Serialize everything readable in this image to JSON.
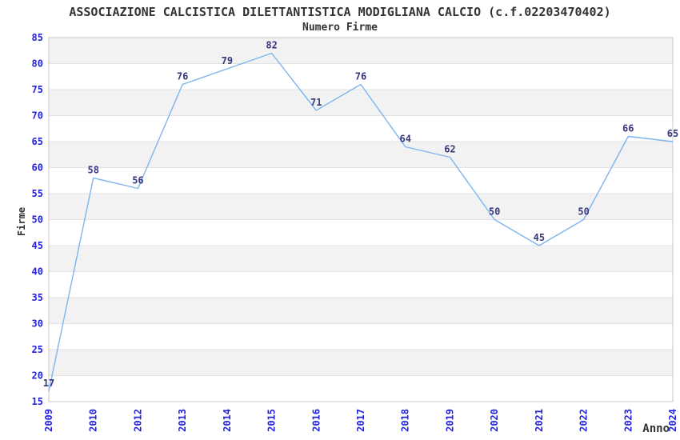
{
  "chart_data": {
    "type": "line",
    "title": "ASSOCIAZIONE CALCISTICA DILETTANTISTICA MODIGLIANA CALCIO (c.f.02203470402)",
    "subtitle": "Numero Firme",
    "xlabel": "Anno",
    "ylabel": "Firme",
    "categories": [
      "2009",
      "2010",
      "2012",
      "2013",
      "2014",
      "2015",
      "2016",
      "2017",
      "2018",
      "2019",
      "2020",
      "2021",
      "2022",
      "2023",
      "2024"
    ],
    "values": [
      17,
      58,
      56,
      76,
      79,
      82,
      71,
      76,
      64,
      62,
      50,
      45,
      50,
      66,
      65
    ],
    "ylim": [
      15,
      85
    ],
    "ytick_step": 5,
    "grid": "horizontal gridlines with alternating shaded bands every 5 units",
    "legend": "none",
    "data_labels": "shown above each point",
    "x_tick_rotation": -90,
    "colors": {
      "line": "#7cb5ec",
      "band": "#f2f2f2",
      "grid": "#e2e2e2",
      "border": "#c8c8c8",
      "tick_label": "#2222dd",
      "data_label": "#373780",
      "text": "#333333",
      "background": "#ffffff"
    }
  }
}
